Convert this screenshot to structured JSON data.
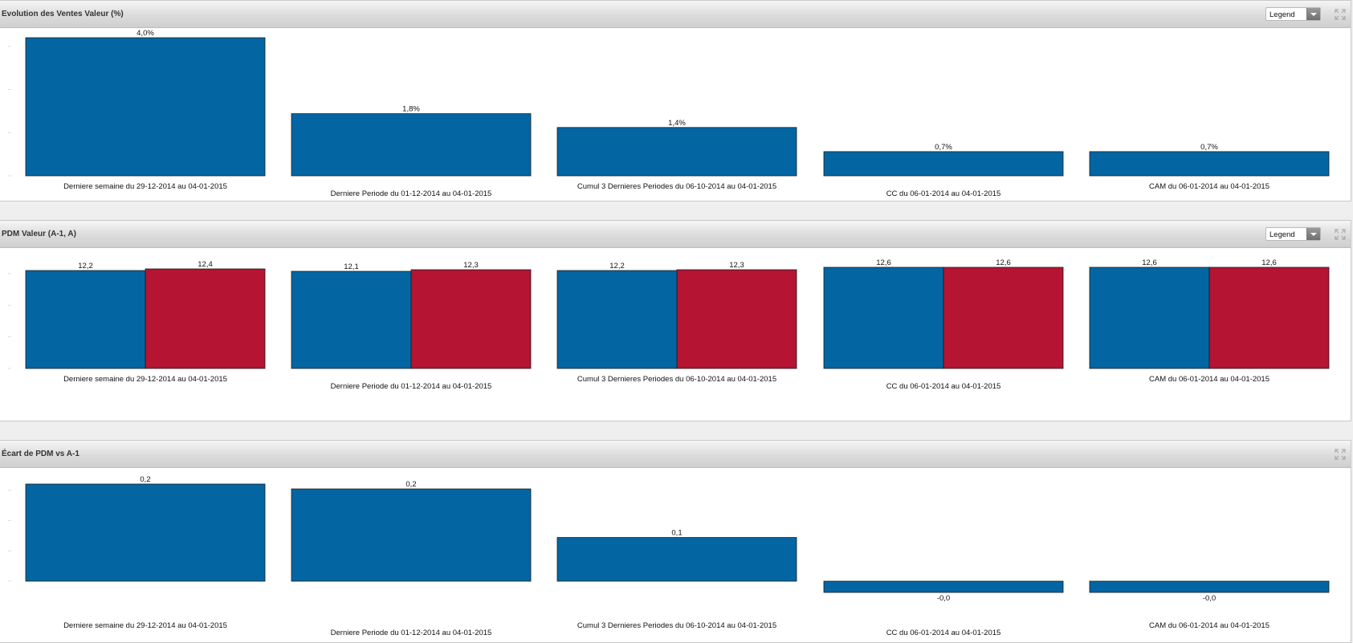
{
  "colors": {
    "blue": "#0366a3",
    "red": "#b51432"
  },
  "panels": [
    {
      "title": "Evolution des Ventes Valeur (%)",
      "legend_label": "Legend",
      "has_legend": true,
      "expand_icon": "expand-icon"
    },
    {
      "title": "PDM Valeur (A-1, A)",
      "legend_label": "Legend",
      "has_legend": true,
      "expand_icon": "expand-icon"
    },
    {
      "title": "Écart de PDM vs A-1",
      "has_legend": false,
      "expand_icon": "expand-icon"
    }
  ],
  "chart_data": [
    {
      "type": "bar",
      "title": "Evolution des Ventes Valeur (%)",
      "categories": [
        "Derniere semaine du 29-12-2014 au 04-01-2015",
        "Derniere Periode du 01-12-2014 au 04-01-2015",
        "Cumul 3 Dernieres Periodes du 06-10-2014 au 04-01-2015",
        "CC du 06-01-2014 au 04-01-2015",
        "CAM du 06-01-2014 au 04-01-2015"
      ],
      "series": [
        {
          "values": [
            4.0,
            1.8,
            1.4,
            0.7,
            0.7
          ],
          "labels": [
            "4,0%",
            "1,8%",
            "1,4%",
            "0,7%",
            "0,7%"
          ]
        }
      ],
      "ylim": [
        0,
        4.0
      ],
      "legend": false
    },
    {
      "type": "bar",
      "title": "PDM Valeur (A-1, A)",
      "categories": [
        "Derniere semaine du 29-12-2014 au 04-01-2015",
        "Derniere Periode du 01-12-2014 au 04-01-2015",
        "Cumul 3 Dernieres Periodes du 06-10-2014 au 04-01-2015",
        "CC du 06-01-2014 au 04-01-2015",
        "CAM du 06-01-2014 au 04-01-2015"
      ],
      "series": [
        {
          "values": [
            12.2,
            12.1,
            12.2,
            12.6,
            12.6
          ],
          "labels": [
            "12,2",
            "12,1",
            "12,2",
            "12,6",
            "12,6"
          ]
        },
        {
          "values": [
            12.4,
            12.3,
            12.3,
            12.6,
            12.6
          ],
          "labels": [
            "12,4",
            "12,3",
            "12,3",
            "12,6",
            "12,6"
          ]
        }
      ],
      "ylim": [
        0,
        12.6
      ],
      "legend": false
    },
    {
      "type": "bar",
      "title": "Écart de PDM vs A-1",
      "categories": [
        "Derniere semaine du 29-12-2014 au 04-01-2015",
        "Derniere Periode du 01-12-2014 au 04-01-2015",
        "Cumul 3 Dernieres Periodes du 06-10-2014 au 04-01-2015",
        "CC du 06-01-2014 au 04-01-2015",
        "CAM du 06-01-2014 au 04-01-2015"
      ],
      "series": [
        {
          "values": [
            0.2,
            0.19,
            0.09,
            -0.02,
            -0.02
          ],
          "labels": [
            "0,2",
            "0,2",
            "0,1",
            "-0,0",
            "-0,0"
          ]
        }
      ],
      "ylim": [
        -0.02,
        0.2
      ],
      "legend": false
    }
  ]
}
